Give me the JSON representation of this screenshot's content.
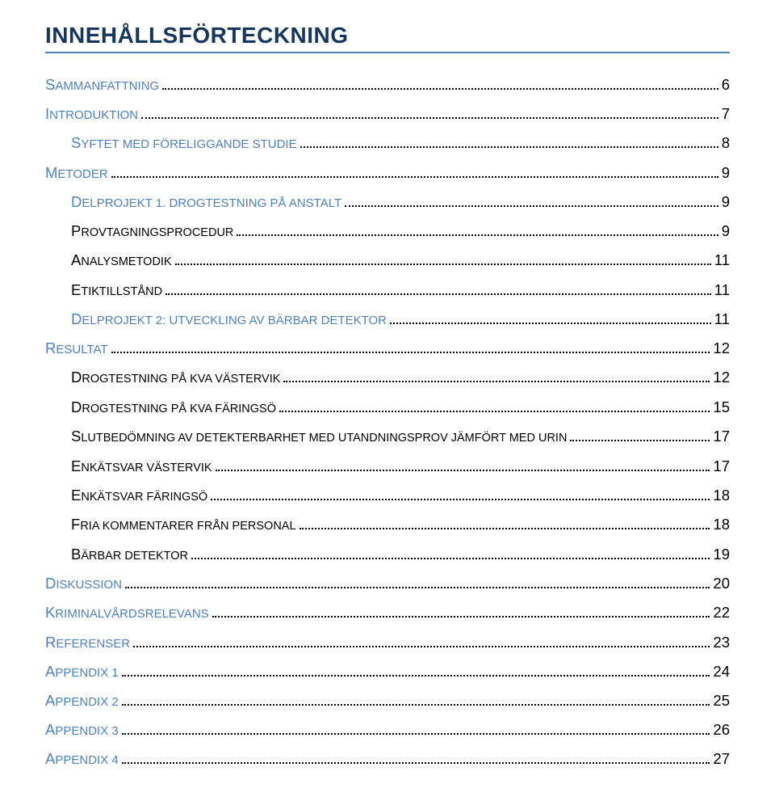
{
  "title": "INNEHÅLLSFÖRTECKNING",
  "colors": {
    "heading": "#17365d",
    "rule": "#4f81bd",
    "link": "#4f81bd",
    "text": "#000000",
    "background": "#ffffff"
  },
  "typography": {
    "title_fontsize_pt": 21,
    "entry_fontsize_pt": 14,
    "smallcaps_fontsize_pt": 11,
    "font_family": "Arial"
  },
  "toc": [
    {
      "level": "lvl1",
      "first": "S",
      "rest": "AMMANFATTNING",
      "page": "6"
    },
    {
      "level": "lvl1",
      "first": "I",
      "rest": "NTRODUKTION",
      "page": "7"
    },
    {
      "level": "lvl2",
      "first": "S",
      "rest": "YFTET MED FÖRELIGGANDE STUDIE",
      "page": "8"
    },
    {
      "level": "lvl1",
      "first": "M",
      "rest": "ETODER",
      "page": "9"
    },
    {
      "level": "lvl2",
      "first": "D",
      "rest": "ELPROJEKT 1. DROGTESTNING PÅ ANSTALT",
      "page": "9"
    },
    {
      "level": "lvl2b",
      "first": "P",
      "rest": "ROVTAGNINGSPROCEDUR",
      "page": "9"
    },
    {
      "level": "lvl2b",
      "first": "A",
      "rest": "NALYSMETODIK",
      "page": "11"
    },
    {
      "level": "lvl2b",
      "first": "E",
      "rest": "TIKTILLSTÅND",
      "page": "11"
    },
    {
      "level": "lvl2",
      "first": "D",
      "rest": "ELPROJEKT 2: UTVECKLING AV BÄRBAR DETEKTOR",
      "page": "11"
    },
    {
      "level": "lvl1",
      "first": "R",
      "rest": "ESULTAT",
      "page": "12"
    },
    {
      "level": "lvl2b",
      "first": "D",
      "rest": "ROGTESTNING PÅ KVA VÄSTERVIK",
      "page": "12"
    },
    {
      "level": "lvl2b",
      "first": "D",
      "rest": "ROGTESTNING PÅ KVA FÄRINGSÖ",
      "page": "15"
    },
    {
      "level": "lvl2b",
      "first": "S",
      "rest": "LUTBEDÖMNING AV DETEKTERBARHET MED UTANDNINGSPROV JÄMFÖRT MED URIN",
      "page": "17"
    },
    {
      "level": "lvl2b",
      "first": "E",
      "rest": "NKÄTSVAR VÄSTERVIK",
      "page": "17"
    },
    {
      "level": "lvl2b",
      "first": "E",
      "rest": "NKÄTSVAR FÄRINGSÖ",
      "page": "18"
    },
    {
      "level": "lvl2b",
      "first": "F",
      "rest": "RIA KOMMENTARER FRÅN PERSONAL",
      "page": "18"
    },
    {
      "level": "lvl2b",
      "first": "B",
      "rest": "ÄRBAR DETEKTOR",
      "page": "19"
    },
    {
      "level": "lvl1",
      "first": "D",
      "rest": "ISKUSSION",
      "page": "20"
    },
    {
      "level": "lvl1",
      "first": "K",
      "rest": "RIMINALVÅRDSRELEVANS",
      "page": "22"
    },
    {
      "level": "lvl1",
      "first": "R",
      "rest": "EFERENSER",
      "page": "23"
    },
    {
      "level": "lvl1",
      "first": "A",
      "rest": "PPENDIX 1",
      "page": "24"
    },
    {
      "level": "lvl1",
      "first": "A",
      "rest": "PPENDIX 2",
      "page": "25"
    },
    {
      "level": "lvl1",
      "first": "A",
      "rest": "PPENDIX 3",
      "page": "26"
    },
    {
      "level": "lvl1",
      "first": "A",
      "rest": "PPENDIX 4",
      "page": "27"
    }
  ]
}
